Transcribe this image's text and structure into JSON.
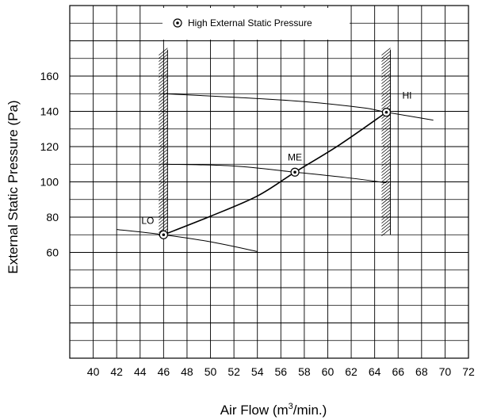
{
  "chart_data": {
    "type": "line",
    "xlabel_main": "Air Flow (m",
    "xlabel_sup": "3",
    "xlabel_tail": "/min.)",
    "ylabel": "External Static Pressure (Pa)",
    "legend_label": "High External Static Pressure",
    "xlim": [
      38,
      72
    ],
    "ylim": [
      0,
      200
    ],
    "x_ticks": [
      40,
      42,
      44,
      46,
      48,
      50,
      52,
      54,
      56,
      58,
      60,
      62,
      64,
      66,
      68,
      70,
      72
    ],
    "y_ticks": [
      60,
      80,
      100,
      120,
      140,
      160
    ],
    "operating_curve": [
      [
        46,
        70
      ],
      [
        50,
        80.5
      ],
      [
        54,
        92
      ],
      [
        57.2,
        105.5
      ],
      [
        61,
        121
      ],
      [
        65,
        139.5
      ]
    ],
    "resistance_curves": [
      [
        [
          46,
          150
        ],
        [
          52,
          148
        ],
        [
          58,
          145.5
        ],
        [
          63,
          142
        ],
        [
          65,
          139.5
        ],
        [
          69,
          135
        ]
      ],
      [
        [
          46,
          110
        ],
        [
          52,
          109
        ],
        [
          57.2,
          105.5
        ],
        [
          61.5,
          102.5
        ],
        [
          65,
          99.5
        ]
      ],
      [
        [
          42,
          73
        ],
        [
          46,
          70
        ],
        [
          50,
          66
        ],
        [
          54,
          60.5
        ]
      ]
    ],
    "points": [
      {
        "label": "LO",
        "x": 46,
        "y": 70
      },
      {
        "label": "ME",
        "x": 57.2,
        "y": 105.5
      },
      {
        "label": "HI",
        "x": 65,
        "y": 139.5
      }
    ],
    "limits": [
      {
        "x": 46,
        "y_range": [
          70,
          175
        ]
      },
      {
        "x": 65,
        "y_range": [
          70,
          175
        ]
      }
    ]
  }
}
